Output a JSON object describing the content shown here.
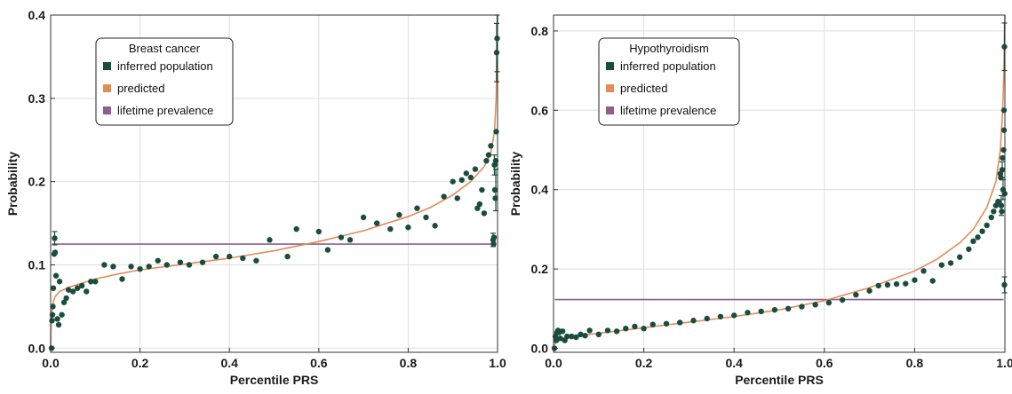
{
  "chart_data": [
    {
      "type": "scatter",
      "xlabel": "Percentile PRS",
      "ylabel": "Probability",
      "xlim": [
        0.0,
        1.0
      ],
      "ylim": [
        -0.005,
        0.4
      ],
      "xticks": [
        "0.0",
        "0.2",
        "0.4",
        "0.6",
        "0.8",
        "1.0"
      ],
      "xtick_values": [
        0.0,
        0.2,
        0.4,
        0.6,
        0.8,
        1.0
      ],
      "yticks": [
        "0.0",
        "0.1",
        "0.2",
        "0.3",
        "0.4"
      ],
      "ytick_values": [
        0.0,
        0.1,
        0.2,
        0.3,
        0.4
      ],
      "grid": true,
      "legend": {
        "title": "Breast cancer",
        "placement": "top-left",
        "entries": [
          {
            "label": "inferred population",
            "color": "#1b4d3e"
          },
          {
            "label": "predicted",
            "color": "#e08d58"
          },
          {
            "label": "lifetime prevalence",
            "color": "#8e5e8c"
          }
        ]
      },
      "colors": {
        "points": "#1b4d3e",
        "curve": "#e08d58",
        "prevalence": "#8e5e8c"
      },
      "prevalence": 0.125,
      "predicted_curve": [
        [
          0.0,
          0.0
        ],
        [
          0.001,
          0.03
        ],
        [
          0.003,
          0.045
        ],
        [
          0.006,
          0.055
        ],
        [
          0.01,
          0.062
        ],
        [
          0.02,
          0.068
        ],
        [
          0.04,
          0.073
        ],
        [
          0.07,
          0.078
        ],
        [
          0.1,
          0.083
        ],
        [
          0.15,
          0.089
        ],
        [
          0.2,
          0.094
        ],
        [
          0.3,
          0.101
        ],
        [
          0.4,
          0.108
        ],
        [
          0.5,
          0.117
        ],
        [
          0.6,
          0.128
        ],
        [
          0.7,
          0.141
        ],
        [
          0.8,
          0.158
        ],
        [
          0.85,
          0.169
        ],
        [
          0.9,
          0.184
        ],
        [
          0.94,
          0.2
        ],
        [
          0.97,
          0.218
        ],
        [
          0.985,
          0.235
        ],
        [
          0.993,
          0.26
        ],
        [
          0.997,
          0.3
        ],
        [
          0.999,
          0.37
        ],
        [
          1.0,
          0.4
        ]
      ],
      "points": [
        [
          0.002,
          0.0
        ],
        [
          0.003,
          0.033
        ],
        [
          0.004,
          0.04
        ],
        [
          0.005,
          0.05
        ],
        [
          0.006,
          0.072
        ],
        [
          0.008,
          0.113
        ],
        [
          0.009,
          0.132
        ],
        [
          0.01,
          0.115
        ],
        [
          0.012,
          0.087
        ],
        [
          0.015,
          0.035
        ],
        [
          0.018,
          0.028
        ],
        [
          0.02,
          0.08
        ],
        [
          0.025,
          0.04
        ],
        [
          0.03,
          0.055
        ],
        [
          0.035,
          0.06
        ],
        [
          0.04,
          0.07
        ],
        [
          0.05,
          0.068
        ],
        [
          0.06,
          0.072
        ],
        [
          0.07,
          0.075
        ],
        [
          0.08,
          0.068
        ],
        [
          0.09,
          0.08
        ],
        [
          0.1,
          0.08
        ],
        [
          0.12,
          0.1
        ],
        [
          0.14,
          0.098
        ],
        [
          0.16,
          0.083
        ],
        [
          0.18,
          0.098
        ],
        [
          0.2,
          0.095
        ],
        [
          0.22,
          0.098
        ],
        [
          0.24,
          0.105
        ],
        [
          0.26,
          0.1
        ],
        [
          0.29,
          0.103
        ],
        [
          0.31,
          0.1
        ],
        [
          0.34,
          0.103
        ],
        [
          0.37,
          0.11
        ],
        [
          0.4,
          0.11
        ],
        [
          0.43,
          0.108
        ],
        [
          0.46,
          0.105
        ],
        [
          0.49,
          0.13
        ],
        [
          0.53,
          0.11
        ],
        [
          0.55,
          0.143
        ],
        [
          0.6,
          0.14
        ],
        [
          0.62,
          0.118
        ],
        [
          0.65,
          0.133
        ],
        [
          0.67,
          0.13
        ],
        [
          0.7,
          0.157
        ],
        [
          0.73,
          0.15
        ],
        [
          0.76,
          0.143
        ],
        [
          0.78,
          0.16
        ],
        [
          0.8,
          0.145
        ],
        [
          0.82,
          0.168
        ],
        [
          0.84,
          0.157
        ],
        [
          0.86,
          0.147
        ],
        [
          0.88,
          0.182
        ],
        [
          0.9,
          0.2
        ],
        [
          0.91,
          0.18
        ],
        [
          0.92,
          0.202
        ],
        [
          0.93,
          0.21
        ],
        [
          0.94,
          0.205
        ],
        [
          0.95,
          0.215
        ],
        [
          0.955,
          0.168
        ],
        [
          0.96,
          0.173
        ],
        [
          0.965,
          0.19
        ],
        [
          0.97,
          0.162
        ],
        [
          0.975,
          0.225
        ],
        [
          0.98,
          0.232
        ],
        [
          0.985,
          0.243
        ],
        [
          0.99,
          0.13
        ],
        [
          0.991,
          0.125
        ],
        [
          0.992,
          0.133
        ],
        [
          0.993,
          0.22
        ],
        [
          0.994,
          0.19
        ],
        [
          0.995,
          0.18
        ],
        [
          0.996,
          0.225
        ],
        [
          0.997,
          0.26
        ],
        [
          0.998,
          0.355
        ],
        [
          0.999,
          0.372
        ]
      ],
      "error_bars": [
        [
          0.009,
          0.132,
          0.008
        ],
        [
          0.99,
          0.13,
          0.008
        ],
        [
          0.993,
          0.22,
          0.012
        ],
        [
          0.996,
          0.19,
          0.025
        ],
        [
          0.998,
          0.355,
          0.035
        ],
        [
          0.999,
          0.372,
          0.04
        ]
      ]
    },
    {
      "type": "scatter",
      "xlabel": "Percentile PRS",
      "ylabel": "Probability",
      "xlim": [
        0.0,
        1.0
      ],
      "ylim": [
        -0.01,
        0.84
      ],
      "xticks": [
        "0.0",
        "0.2",
        "0.4",
        "0.6",
        "0.8",
        "1.0"
      ],
      "xtick_values": [
        0.0,
        0.2,
        0.4,
        0.6,
        0.8,
        1.0
      ],
      "yticks": [
        "0.0",
        "0.2",
        "0.4",
        "0.6",
        "0.8"
      ],
      "ytick_values": [
        0.0,
        0.2,
        0.4,
        0.6,
        0.8
      ],
      "grid": true,
      "legend": {
        "title": "Hypothyroidism",
        "placement": "top-left",
        "entries": [
          {
            "label": "inferred population",
            "color": "#1b4d3e"
          },
          {
            "label": "predicted",
            "color": "#e08d58"
          },
          {
            "label": "lifetime prevalence",
            "color": "#8e5e8c"
          }
        ]
      },
      "colors": {
        "points": "#1b4d3e",
        "curve": "#e08d58",
        "prevalence": "#8e5e8c"
      },
      "prevalence": 0.123,
      "predicted_curve": [
        [
          0.0,
          0.005
        ],
        [
          0.005,
          0.015
        ],
        [
          0.01,
          0.02
        ],
        [
          0.02,
          0.025
        ],
        [
          0.05,
          0.031
        ],
        [
          0.1,
          0.038
        ],
        [
          0.2,
          0.052
        ],
        [
          0.3,
          0.066
        ],
        [
          0.4,
          0.08
        ],
        [
          0.5,
          0.097
        ],
        [
          0.6,
          0.12
        ],
        [
          0.7,
          0.153
        ],
        [
          0.8,
          0.195
        ],
        [
          0.85,
          0.225
        ],
        [
          0.9,
          0.266
        ],
        [
          0.93,
          0.3
        ],
        [
          0.96,
          0.355
        ],
        [
          0.98,
          0.42
        ],
        [
          0.99,
          0.5
        ],
        [
          0.995,
          0.6
        ],
        [
          0.998,
          0.7
        ],
        [
          1.0,
          0.84
        ]
      ],
      "points": [
        [
          0.002,
          0.0
        ],
        [
          0.004,
          0.03
        ],
        [
          0.006,
          0.02
        ],
        [
          0.008,
          0.04
        ],
        [
          0.01,
          0.045
        ],
        [
          0.012,
          0.04
        ],
        [
          0.015,
          0.025
        ],
        [
          0.02,
          0.043
        ],
        [
          0.025,
          0.02
        ],
        [
          0.03,
          0.03
        ],
        [
          0.04,
          0.03
        ],
        [
          0.05,
          0.028
        ],
        [
          0.06,
          0.035
        ],
        [
          0.07,
          0.032
        ],
        [
          0.08,
          0.045
        ],
        [
          0.1,
          0.035
        ],
        [
          0.12,
          0.045
        ],
        [
          0.14,
          0.043
        ],
        [
          0.16,
          0.05
        ],
        [
          0.18,
          0.055
        ],
        [
          0.2,
          0.05
        ],
        [
          0.22,
          0.06
        ],
        [
          0.25,
          0.062
        ],
        [
          0.28,
          0.065
        ],
        [
          0.31,
          0.07
        ],
        [
          0.34,
          0.075
        ],
        [
          0.37,
          0.08
        ],
        [
          0.4,
          0.083
        ],
        [
          0.43,
          0.09
        ],
        [
          0.46,
          0.093
        ],
        [
          0.49,
          0.097
        ],
        [
          0.52,
          0.1
        ],
        [
          0.55,
          0.105
        ],
        [
          0.58,
          0.11
        ],
        [
          0.61,
          0.115
        ],
        [
          0.64,
          0.122
        ],
        [
          0.67,
          0.135
        ],
        [
          0.7,
          0.145
        ],
        [
          0.72,
          0.158
        ],
        [
          0.74,
          0.16
        ],
        [
          0.76,
          0.162
        ],
        [
          0.78,
          0.163
        ],
        [
          0.8,
          0.172
        ],
        [
          0.82,
          0.195
        ],
        [
          0.84,
          0.17
        ],
        [
          0.86,
          0.21
        ],
        [
          0.88,
          0.215
        ],
        [
          0.9,
          0.23
        ],
        [
          0.92,
          0.25
        ],
        [
          0.93,
          0.27
        ],
        [
          0.94,
          0.28
        ],
        [
          0.95,
          0.295
        ],
        [
          0.96,
          0.31
        ],
        [
          0.97,
          0.33
        ],
        [
          0.975,
          0.345
        ],
        [
          0.98,
          0.36
        ],
        [
          0.985,
          0.37
        ],
        [
          0.99,
          0.44
        ],
        [
          0.991,
          0.43
        ],
        [
          0.992,
          0.36
        ],
        [
          0.993,
          0.345
        ],
        [
          0.994,
          0.45
        ],
        [
          0.995,
          0.48
        ],
        [
          0.996,
          0.4
        ],
        [
          0.997,
          0.5
        ],
        [
          0.998,
          0.55
        ],
        [
          0.998,
          0.6
        ],
        [
          0.999,
          0.16
        ],
        [
          0.999,
          0.76
        ],
        [
          0.9995,
          0.39
        ]
      ],
      "error_bars": [
        [
          0.992,
          0.36,
          0.025
        ],
        [
          0.994,
          0.45,
          0.02
        ],
        [
          0.996,
          0.4,
          0.025
        ],
        [
          0.999,
          0.16,
          0.02
        ],
        [
          0.999,
          0.76,
          0.06
        ]
      ]
    }
  ]
}
